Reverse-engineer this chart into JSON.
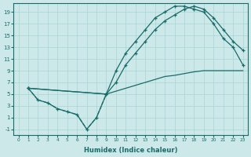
{
  "bg_color": "#cce8e8",
  "line_color": "#1a6b6b",
  "xlabel": "Humidex (Indice chaleur)",
  "xlim": [
    -0.5,
    23.5
  ],
  "ylim": [
    -2,
    20.5
  ],
  "xticks": [
    0,
    1,
    2,
    3,
    4,
    5,
    6,
    7,
    8,
    9,
    10,
    11,
    12,
    13,
    14,
    15,
    16,
    17,
    18,
    19,
    20,
    21,
    22,
    23
  ],
  "yticks": [
    -1,
    1,
    3,
    5,
    7,
    9,
    11,
    13,
    15,
    17,
    19
  ],
  "curve_upper_x": [
    1,
    9,
    10,
    11,
    12,
    13,
    14,
    15,
    16,
    17,
    18,
    19,
    20,
    21,
    22,
    23
  ],
  "curve_upper_y": [
    6,
    5,
    9,
    12,
    14,
    16,
    18,
    19,
    20,
    20,
    19.5,
    19,
    17,
    14.5,
    13,
    10
  ],
  "curve_mid_x": [
    1,
    9,
    10,
    11,
    12,
    13,
    14,
    15,
    16,
    17,
    18,
    19,
    20,
    21,
    22,
    23
  ],
  "curve_mid_y": [
    6,
    5,
    7,
    10,
    12,
    14,
    16,
    17.5,
    18.5,
    19.5,
    20,
    19.5,
    18,
    16,
    14,
    12.5
  ],
  "curve_dashed_x": [
    1,
    2,
    3,
    4,
    5,
    6,
    7,
    8,
    9
  ],
  "curve_dashed_y": [
    6,
    4,
    3.5,
    2.5,
    2,
    1.5,
    -1,
    1,
    5
  ],
  "curve_base_x": [
    1,
    2,
    3,
    4,
    5,
    6,
    7,
    8,
    9,
    10,
    11,
    12,
    13,
    14,
    15,
    16,
    17,
    18,
    19,
    20,
    21,
    22,
    23
  ],
  "curve_base_y": [
    6,
    4,
    3.5,
    2.5,
    2,
    1.5,
    -1,
    1,
    5,
    5.5,
    6,
    6.5,
    7,
    7.5,
    8,
    8.2,
    8.5,
    8.8,
    9,
    9,
    9,
    9,
    9
  ]
}
